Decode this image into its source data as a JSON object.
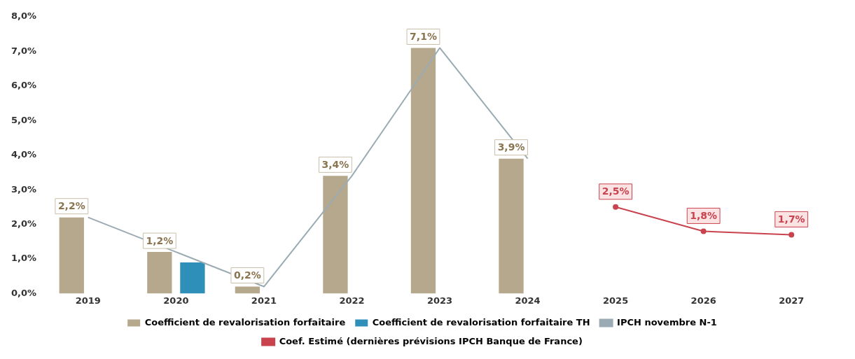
{
  "chart_data": {
    "type": "bar",
    "categories": [
      "2019",
      "2020",
      "2021",
      "2022",
      "2023",
      "2024",
      "2025",
      "2026",
      "2027"
    ],
    "series": [
      {
        "name": "Coefficient de revalorisation forfaitaire",
        "color": "#b5a88d",
        "values": [
          2.2,
          1.2,
          0.2,
          3.4,
          7.1,
          3.9,
          null,
          null,
          null
        ],
        "value_labels": [
          "2,2%",
          "1,2%",
          "0,2%",
          "3,4%",
          "7,1%",
          "3,9%",
          null,
          null,
          null
        ]
      },
      {
        "name": "Coefficient de revalorisation forfaitaire TH",
        "color": "#2e8fb8",
        "values": [
          null,
          0.9,
          null,
          null,
          null,
          null,
          null,
          null,
          null
        ]
      },
      {
        "name": "IPCH novembre N-1",
        "type": "line",
        "color": "#9aabb3",
        "marker": "none",
        "values": [
          2.2,
          1.2,
          0.2,
          3.4,
          7.1,
          3.9,
          null,
          null,
          null
        ]
      },
      {
        "name": "Coef. Estimé (dernières prévisions IPCH Banque de France)",
        "type": "line",
        "color": "#c9434f",
        "marker": "circle",
        "values": [
          null,
          null,
          null,
          null,
          null,
          null,
          2.5,
          1.8,
          1.7
        ],
        "value_labels": [
          null,
          null,
          null,
          null,
          null,
          null,
          "2,5%",
          "1,8%",
          "1,7%"
        ]
      }
    ],
    "ylim": [
      0,
      8
    ],
    "yticks": [
      {
        "value": 0,
        "label": "0,0%"
      },
      {
        "value": 1,
        "label": "1,0%"
      },
      {
        "value": 2,
        "label": "2,0%"
      },
      {
        "value": 3,
        "label": "3,0%"
      },
      {
        "value": 4,
        "label": "4,0%"
      },
      {
        "value": 5,
        "label": "5,0%"
      },
      {
        "value": 6,
        "label": "6,0%"
      },
      {
        "value": 7,
        "label": "7,0%"
      },
      {
        "value": 8,
        "label": "8,0%"
      }
    ],
    "grid": false,
    "legend": "bottom"
  }
}
